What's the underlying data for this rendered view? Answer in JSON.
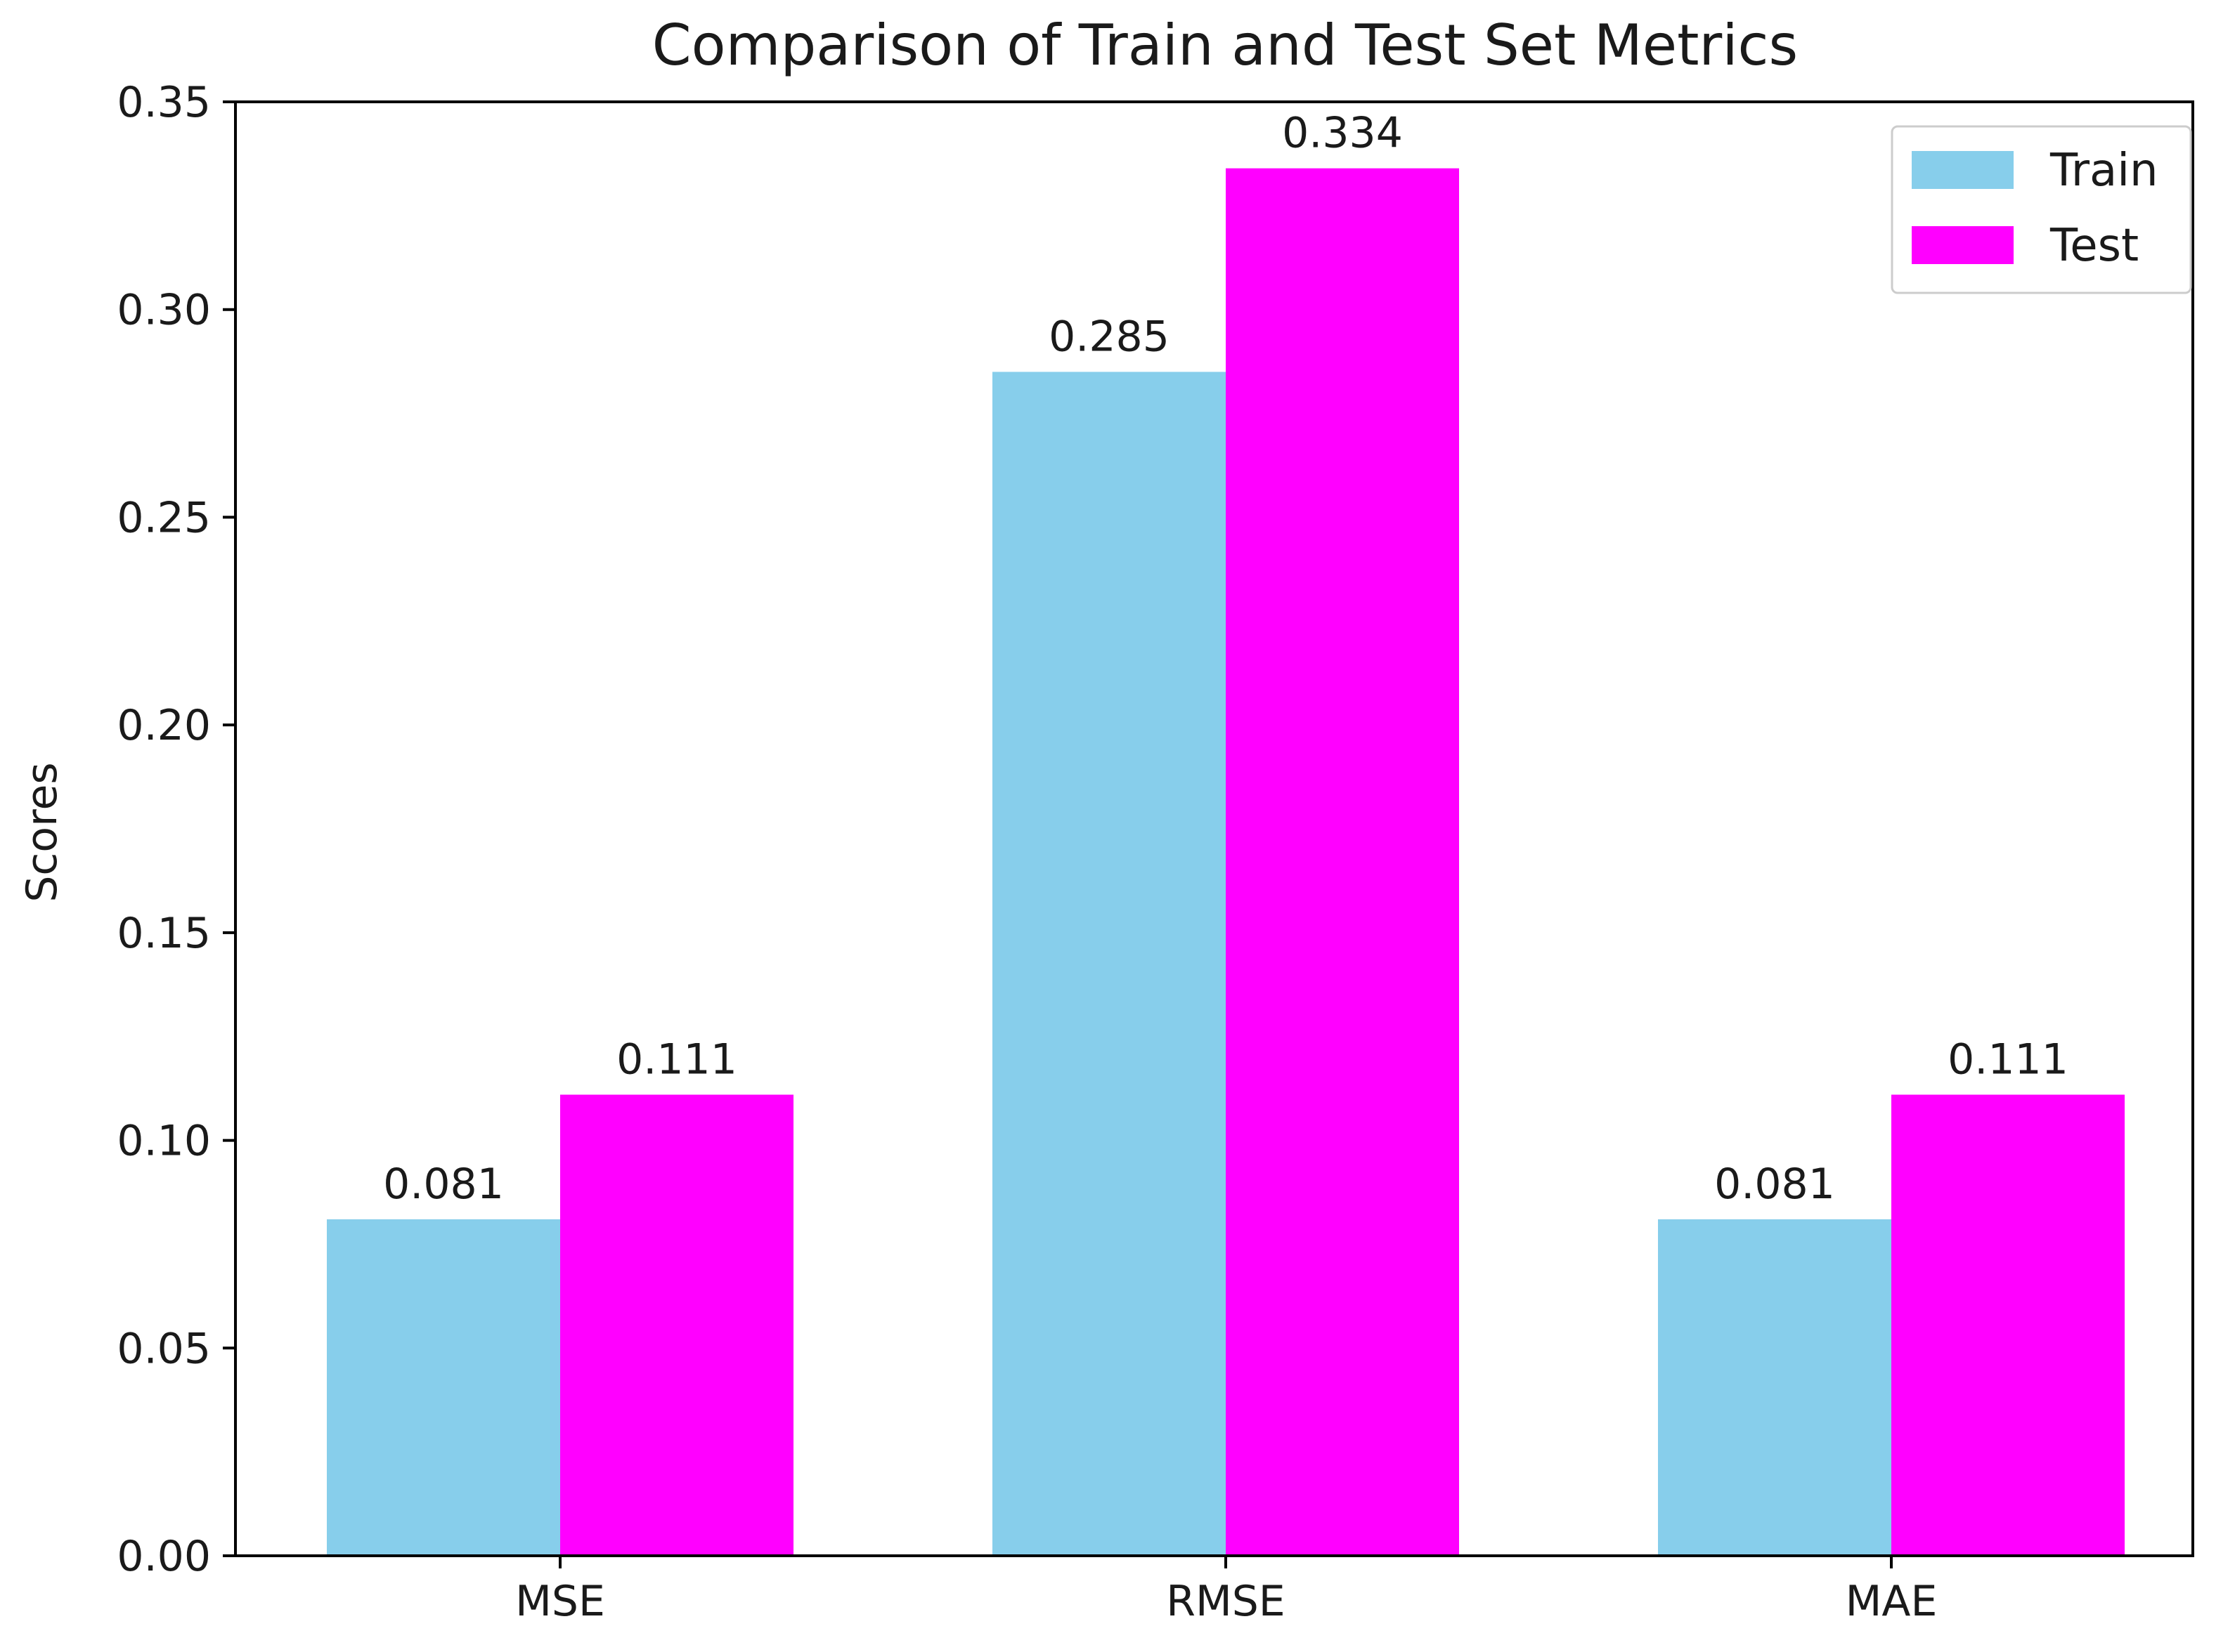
{
  "chart_data": {
    "type": "bar",
    "title": "Comparison of Train and Test Set Metrics",
    "xlabel": "",
    "ylabel": "Scores",
    "categories": [
      "MSE",
      "RMSE",
      "MAE"
    ],
    "series": [
      {
        "name": "Train",
        "color": "#87ceeb",
        "values": [
          0.081,
          0.285,
          0.081
        ],
        "labels": [
          "0.081",
          "0.285",
          "0.081"
        ]
      },
      {
        "name": "Test",
        "color": "#ff00ff",
        "values": [
          0.111,
          0.334,
          0.111
        ],
        "labels": [
          "0.111",
          "0.334",
          "0.111"
        ]
      }
    ],
    "ylim": [
      0,
      0.35
    ],
    "yticks": [
      0,
      0.05,
      0.1,
      0.15,
      0.2,
      0.25,
      0.3,
      0.35
    ],
    "ytick_labels": [
      "0.00",
      "0.05",
      "0.10",
      "0.15",
      "0.20",
      "0.25",
      "0.30",
      "0.35"
    ],
    "grid": false,
    "legend_position": "top-right"
  }
}
